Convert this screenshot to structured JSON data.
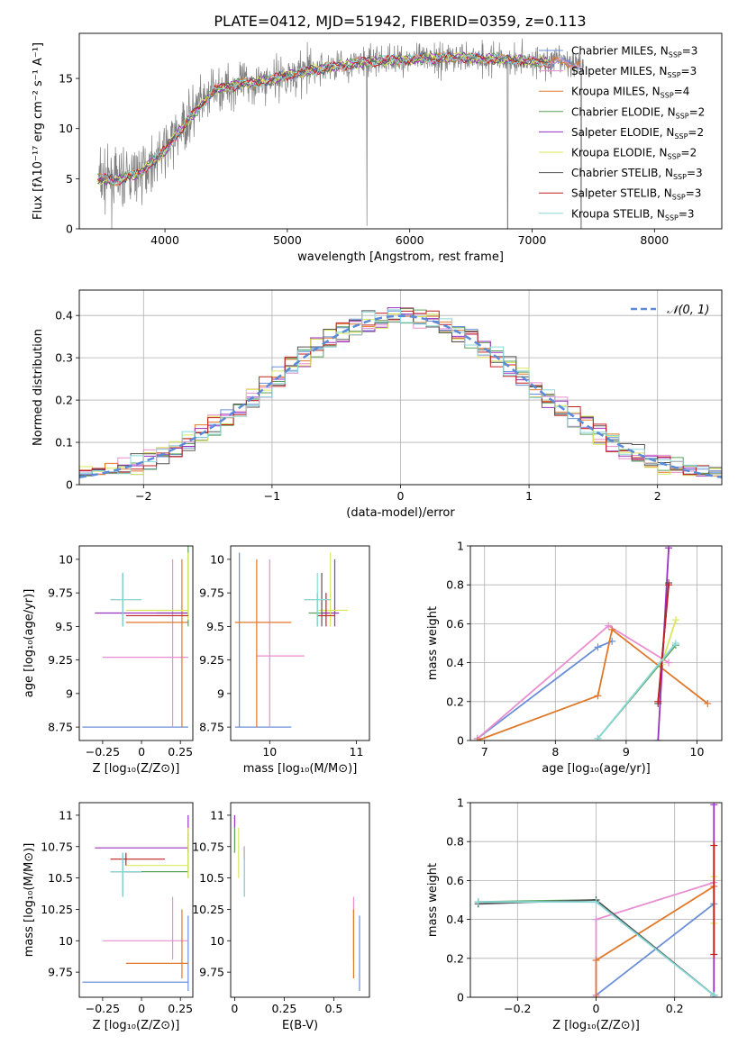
{
  "title": "PLATE=0412, MJD=51942, FIBERID=0359, z=0.113",
  "colors": {
    "chabrier_miles": "#6a8fd8",
    "salpeter_miles": "#e88ecf",
    "kroupa_miles": "#e0782a",
    "chabrier_elodie": "#5aa05a",
    "salpeter_elodie": "#9b30c0",
    "kroupa_elodie": "#d8e85a",
    "chabrier_stelib": "#555555",
    "salpeter_stelib": "#c02020",
    "kroupa_stelib": "#8ad8d8",
    "data": "#808080",
    "gauss": "#5b8ad8"
  },
  "chart_data": [
    {
      "id": "spectrum",
      "type": "line",
      "xlabel": "wavelength [Angstrom, rest frame]",
      "ylabel": "Flux [fλ10⁻¹⁷ erg cm⁻² s⁻¹ A⁻¹]",
      "xlim": [
        3300,
        8550
      ],
      "ylim": [
        0,
        19.5
      ],
      "xticks": [
        4000,
        5000,
        6000,
        7000,
        8000
      ],
      "yticks": [
        0,
        5,
        10,
        15
      ],
      "legend_position": "top-right",
      "legend": [
        "Chabrier MILES, N_SSP=3",
        "Salpeter MILES, N_SSP=3",
        "Kroupa MILES, N_SSP=4",
        "Chabrier ELODIE, N_SSP=2",
        "Salpeter ELODIE, N_SSP=2",
        "Kroupa ELODIE, N_SSP=2",
        "Chabrier STELIB, N_SSP=3",
        "Salpeter STELIB, N_SSP=3",
        "Kroupa STELIB, N_SSP=3"
      ],
      "model_continuum": {
        "x": [
          3450,
          3600,
          3800,
          4000,
          4200,
          4400,
          4600,
          4800,
          5000,
          5200,
          5400,
          5600,
          5800,
          6000,
          6200,
          6400,
          6600,
          6800,
          7000,
          7200,
          7400
        ],
        "y": [
          5,
          4.8,
          5.6,
          7.8,
          11,
          13.8,
          14.4,
          14.7,
          15.3,
          15.8,
          16.2,
          16.6,
          16.8,
          16.9,
          17.0,
          17.1,
          17.0,
          16.9,
          16.7,
          16.6,
          16.4
        ]
      }
    },
    {
      "id": "residuals",
      "type": "line",
      "xlabel": "(data-model)/error",
      "ylabel": "Normed distribution",
      "xlim": [
        -2.5,
        2.5
      ],
      "ylim": [
        0,
        0.46
      ],
      "xticks": [
        -2,
        -1,
        0,
        1,
        2
      ],
      "yticks": [
        0.0,
        0.1,
        0.2,
        0.3,
        0.4
      ],
      "grid": true,
      "legend_position": "top-right",
      "gauss_label": "𝒩(0, 1)"
    },
    {
      "id": "age_vs_Z",
      "type": "scatter",
      "xlabel": "Z [log₁₀(Z/Z⊙)]",
      "ylabel": "age  [log₁₀(age/yr)]",
      "xlim": [
        -0.4,
        0.33
      ],
      "ylim": [
        8.65,
        10.1
      ],
      "xticks": [
        -0.25,
        0.0,
        0.25
      ],
      "yticks": [
        8.75,
        9.0,
        9.25,
        9.5,
        9.75,
        10.0
      ]
    },
    {
      "id": "age_vs_mass",
      "type": "scatter",
      "xlabel": "mass [log₁₀(M/M⊙)]",
      "xlim": [
        9.55,
        11.15
      ],
      "ylim": [
        8.65,
        10.1
      ],
      "xticks": [
        10,
        11
      ],
      "yticks": [
        8.75,
        9.0,
        9.25,
        9.5,
        9.75,
        10.0
      ]
    },
    {
      "id": "weight_vs_age",
      "type": "line",
      "xlabel": "age  [log₁₀(age/yr)]",
      "ylabel": "mass weight",
      "xlim": [
        6.8,
        10.35
      ],
      "ylim": [
        0,
        1
      ],
      "xticks": [
        7,
        8,
        9,
        10
      ],
      "yticks": [
        0.0,
        0.2,
        0.4,
        0.6,
        0.8,
        1.0
      ],
      "grid": true,
      "series": [
        {
          "key": "chabrier_miles",
          "x": [
            6.9,
            8.6,
            8.8
          ],
          "y": [
            0.01,
            0.48,
            0.51
          ]
        },
        {
          "key": "salpeter_miles",
          "x": [
            6.9,
            8.75,
            9.6
          ],
          "y": [
            0.01,
            0.59,
            0.4
          ]
        },
        {
          "key": "kroupa_miles",
          "x": [
            6.9,
            8.6,
            8.8,
            10.15
          ],
          "y": [
            0.0,
            0.23,
            0.57,
            0.19
          ]
        },
        {
          "key": "chabrier_elodie",
          "x": [
            8.6,
            9.7
          ],
          "y": [
            0.01,
            0.49
          ]
        },
        {
          "key": "salpeter_elodie",
          "x": [
            9.45,
            9.6
          ],
          "y": [
            0.0,
            0.99
          ]
        },
        {
          "key": "kroupa_elodie",
          "x": [
            9.5,
            9.7
          ],
          "y": [
            0.39,
            0.62
          ]
        },
        {
          "key": "chabrier_stelib",
          "x": [
            9.45,
            9.6
          ],
          "y": [
            0.19,
            0.81
          ]
        },
        {
          "key": "salpeter_stelib",
          "x": [
            9.45,
            9.6
          ],
          "y": [
            0.2,
            0.8
          ]
        },
        {
          "key": "kroupa_stelib",
          "x": [
            8.6,
            9.7
          ],
          "y": [
            0.01,
            0.5
          ]
        }
      ]
    },
    {
      "id": "mass_vs_Z",
      "type": "scatter",
      "xlabel": "Z [log₁₀(Z/Z⊙)]",
      "ylabel": "mass [log₁₀(M/M⊙)]",
      "xlim": [
        -0.4,
        0.33
      ],
      "ylim": [
        9.55,
        11.1
      ],
      "xticks": [
        -0.25,
        0.0,
        0.25
      ],
      "yticks": [
        9.75,
        10.0,
        10.25,
        10.5,
        10.75,
        11.0
      ]
    },
    {
      "id": "mass_vs_ebv",
      "type": "scatter",
      "xlabel": "E(B-V)",
      "xlim": [
        -0.02,
        0.68
      ],
      "ylim": [
        9.55,
        11.1
      ],
      "xticks": [
        0.0,
        0.25,
        0.5
      ],
      "yticks": [
        9.75,
        10.0,
        10.25,
        10.5,
        10.75,
        11.0
      ]
    },
    {
      "id": "weight_vs_Z",
      "type": "line",
      "xlabel": "Z [log₁₀(Z/Z⊙)]",
      "ylabel": "mass weight",
      "xlim": [
        -0.32,
        0.32
      ],
      "ylim": [
        0,
        1
      ],
      "xticks": [
        -0.2,
        0.0,
        0.2
      ],
      "yticks": [
        0.0,
        0.2,
        0.4,
        0.6,
        0.8,
        1.0
      ],
      "grid": true,
      "series": [
        {
          "key": "chabrier_miles",
          "x": [
            0.0,
            0.3
          ],
          "y": [
            0.01,
            0.48
          ]
        },
        {
          "key": "salpeter_miles",
          "x": [
            0.0,
            0.0,
            0.3
          ],
          "y": [
            0.01,
            0.4,
            0.59
          ]
        },
        {
          "key": "kroupa_miles",
          "x": [
            0.0,
            0.0,
            0.3
          ],
          "y": [
            0.0,
            0.19,
            0.57
          ]
        },
        {
          "key": "chabrier_elodie",
          "x": [
            -0.3,
            0.0,
            0.3
          ],
          "y": [
            0.49,
            0.5,
            0.01
          ]
        },
        {
          "key": "salpeter_elodie",
          "x": [
            0.3,
            0.3
          ],
          "y": [
            0.0,
            0.99
          ]
        },
        {
          "key": "kroupa_elodie",
          "x": [
            0.3,
            0.3
          ],
          "y": [
            0.38,
            0.62
          ]
        },
        {
          "key": "chabrier_stelib",
          "x": [
            -0.3,
            0.0,
            0.3
          ],
          "y": [
            0.48,
            0.5,
            0.01
          ]
        },
        {
          "key": "salpeter_stelib",
          "x": [
            0.3,
            0.3
          ],
          "y": [
            0.22,
            0.78
          ]
        },
        {
          "key": "kroupa_stelib",
          "x": [
            -0.3,
            0.0,
            0.3
          ],
          "y": [
            0.49,
            0.49,
            0.01
          ]
        }
      ]
    }
  ]
}
